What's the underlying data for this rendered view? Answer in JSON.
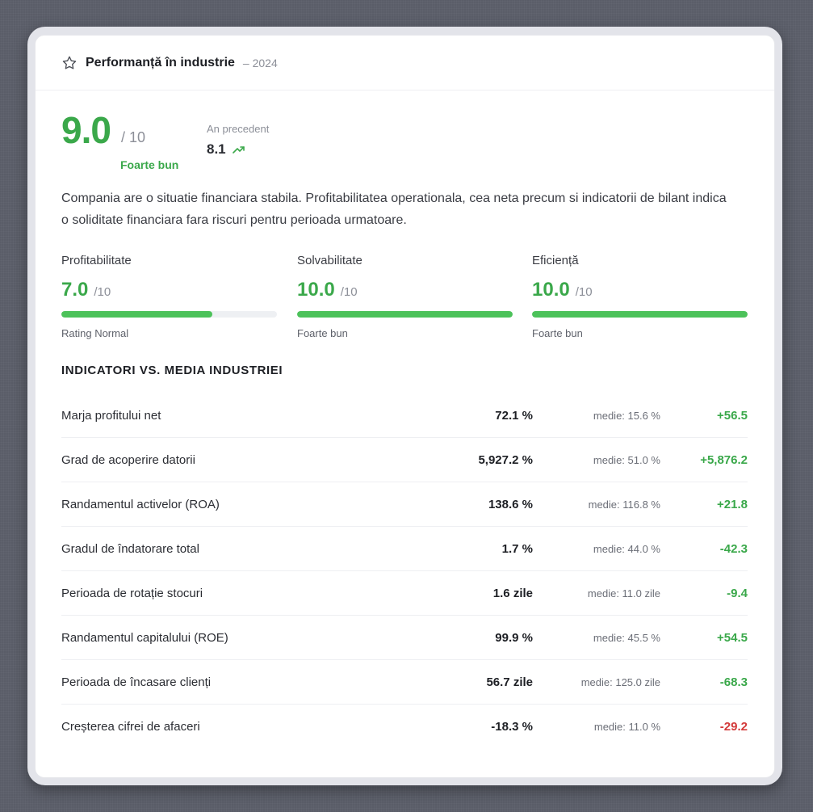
{
  "header": {
    "title": "Performanță în industrie",
    "year": "– 2024",
    "icon": "star-icon"
  },
  "score": {
    "value": "9.0",
    "out_of": "/ 10",
    "label": "Foarte bun"
  },
  "previous": {
    "label": "An precedent",
    "value": "8.1",
    "icon": "trending-up-icon"
  },
  "description": "Compania are o situatie financiara stabila. Profitabilitatea operationala, cea neta precum si indicatorii de bilant indica o soliditate financiara fara riscuri pentru perioada urmatoare.",
  "metrics": [
    {
      "label": "Profitabilitate",
      "score": "7.0",
      "denom": "/10",
      "fraction": 0.7,
      "status": "Rating Normal"
    },
    {
      "label": "Solvabilitate",
      "score": "10.0",
      "denom": "/10",
      "fraction": 1.0,
      "status": "Foarte bun"
    },
    {
      "label": "Eficiență",
      "score": "10.0",
      "denom": "/10",
      "fraction": 1.0,
      "status": "Foarte bun"
    }
  ],
  "section_title": "INDICATORI VS. MEDIA INDUSTRIEI",
  "indicators": [
    {
      "name": "Marja profitului net",
      "value": "72.1 %",
      "avg": "medie: 15.6 %",
      "diff": "+56.5",
      "tone": "pos"
    },
    {
      "name": "Grad de acoperire datorii",
      "value": "5,927.2 %",
      "avg": "medie: 51.0 %",
      "diff": "+5,876.2",
      "tone": "pos"
    },
    {
      "name": "Randamentul activelor (ROA)",
      "value": "138.6 %",
      "avg": "medie: 116.8 %",
      "diff": "+21.8",
      "tone": "pos"
    },
    {
      "name": "Gradul de îndatorare total",
      "value": "1.7 %",
      "avg": "medie: 44.0 %",
      "diff": "-42.3",
      "tone": "neg-green"
    },
    {
      "name": "Perioada de rotație stocuri",
      "value": "1.6 zile",
      "avg": "medie: 11.0 zile",
      "diff": "-9.4",
      "tone": "neg-green"
    },
    {
      "name": "Randamentul capitalului (ROE)",
      "value": "99.9 %",
      "avg": "medie: 45.5 %",
      "diff": "+54.5",
      "tone": "pos"
    },
    {
      "name": "Perioada de încasare clienți",
      "value": "56.7 zile",
      "avg": "medie: 125.0 zile",
      "diff": "-68.3",
      "tone": "neg-green"
    },
    {
      "name": "Creșterea cifrei de afaceri",
      "value": "-18.3 %",
      "avg": "medie: 11.0 %",
      "diff": "-29.2",
      "tone": "neg-red"
    }
  ],
  "colors": {
    "accent": "#3aa84a",
    "bar_fill": "#4cc25a",
    "negative": "#d33a3a"
  }
}
